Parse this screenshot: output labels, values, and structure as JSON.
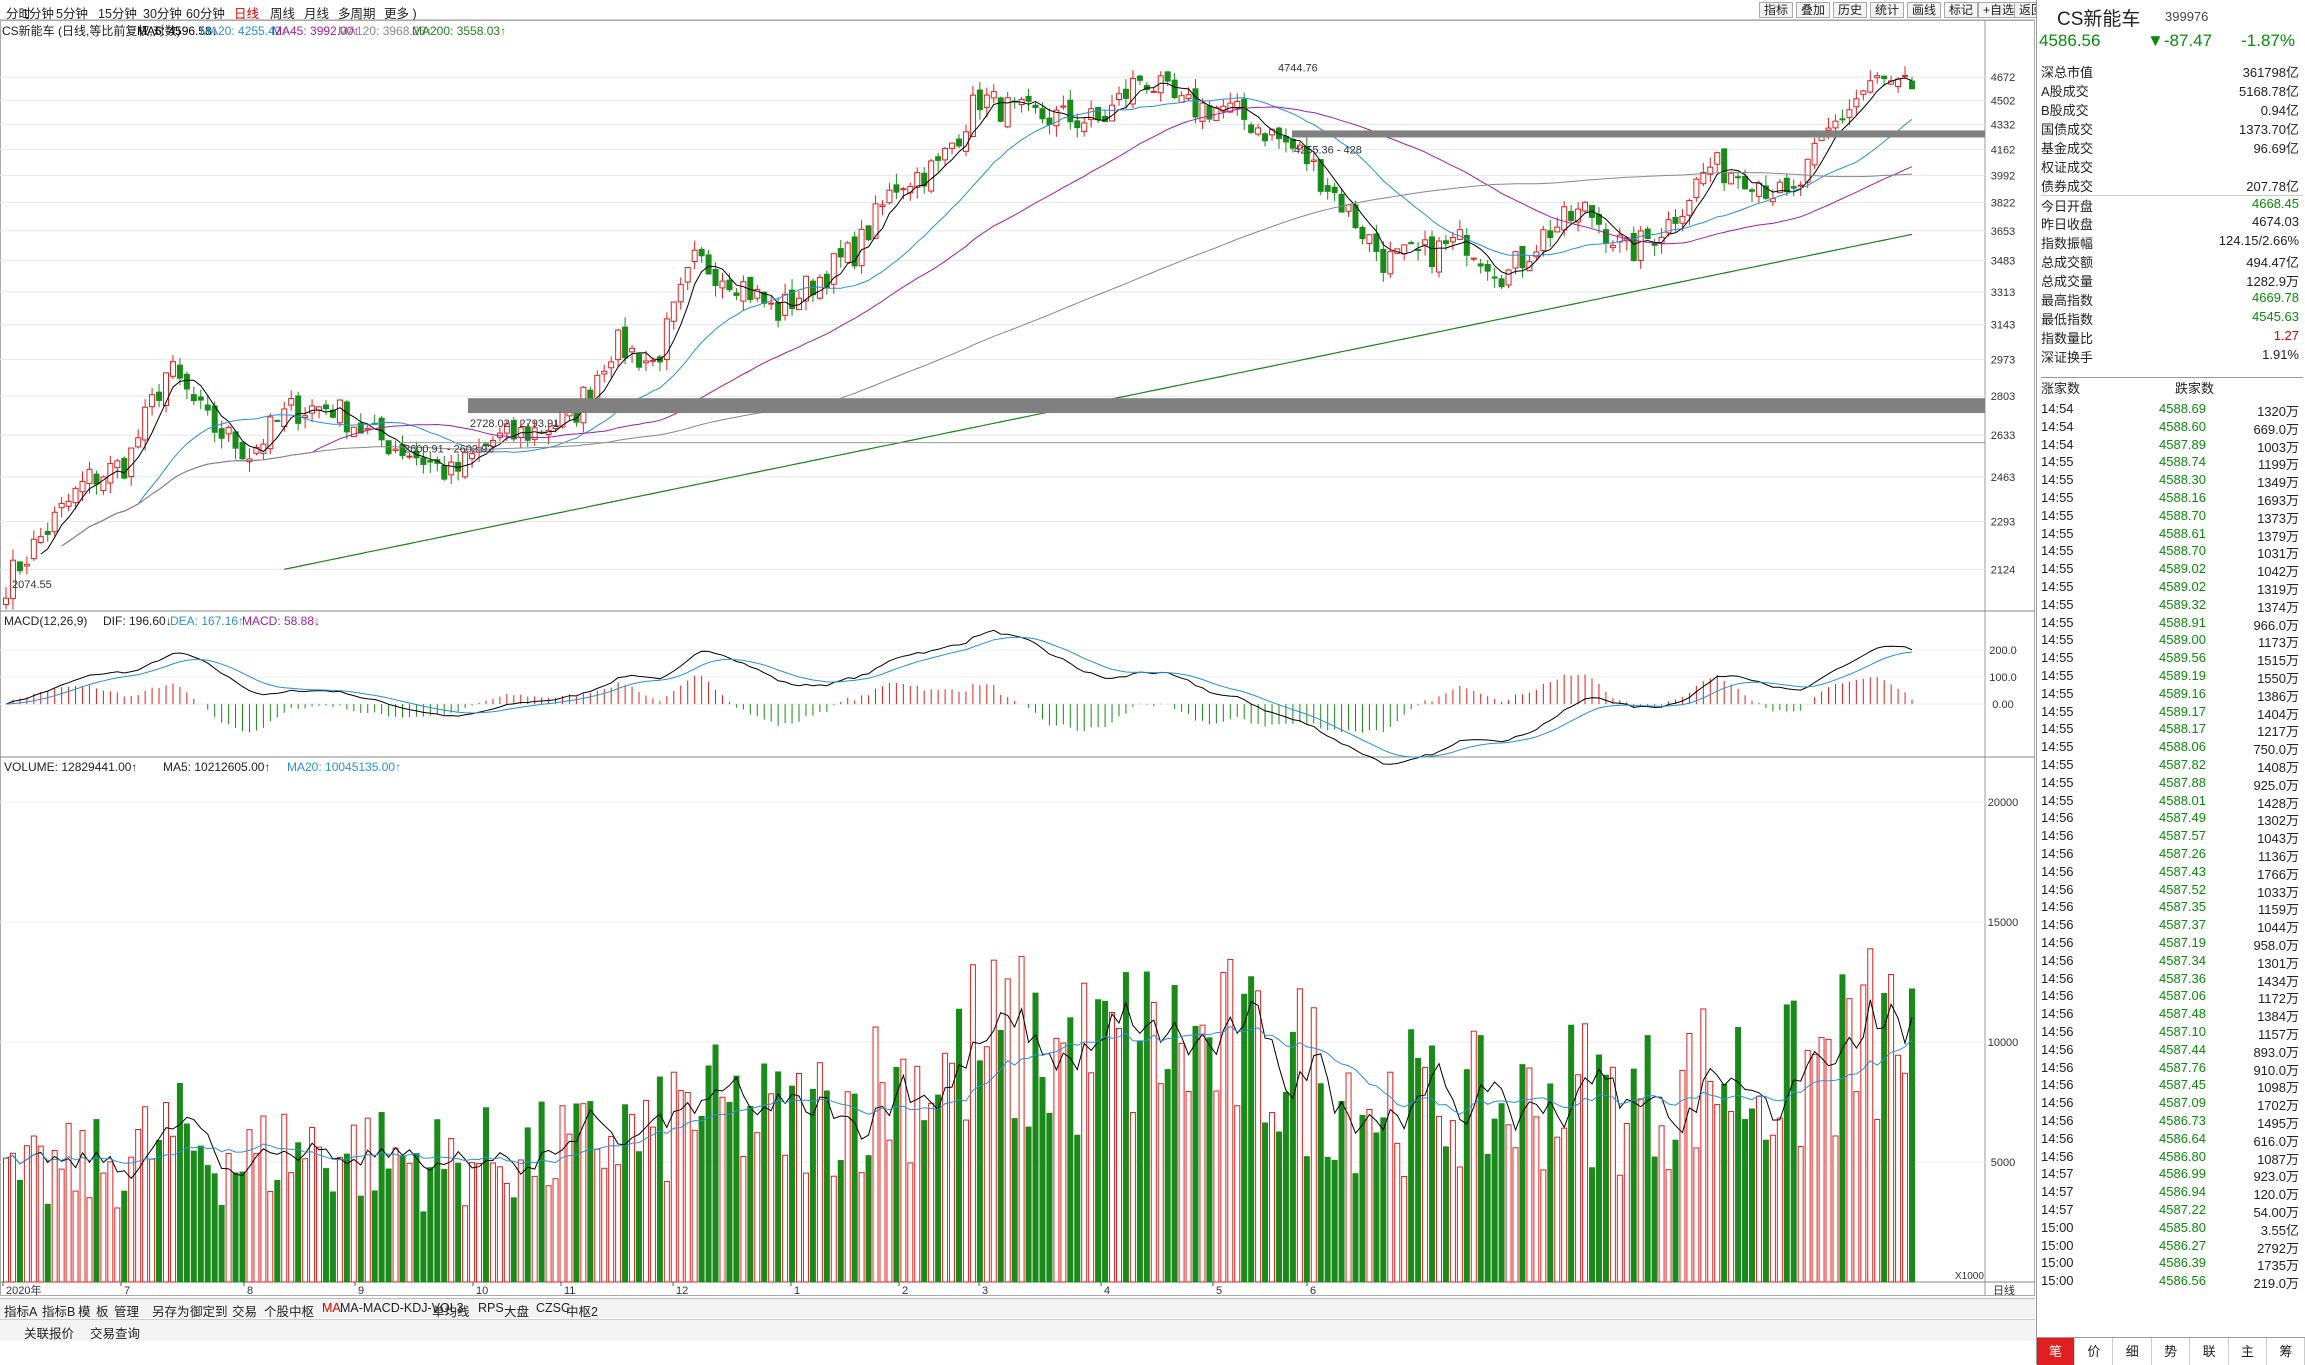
{
  "toolbar": {
    "periods": [
      "分时",
      "1分钟",
      "5分钟",
      "15分钟",
      "30分钟",
      "60分钟",
      "日线",
      "周线",
      "月线",
      "多周期",
      "更多 )"
    ],
    "active_period": "日线",
    "right_buttons": [
      "指标",
      "叠加",
      "历史",
      "统计",
      "画线",
      "标记",
      "+自选",
      "返回"
    ]
  },
  "legend": {
    "main": {
      "name": "CS新能车 (日线,等比前复权,对数)",
      "ma5": "MA5: 4596.58↓",
      "ma20": "MA20: 4255.42↑",
      "ma45": "MA45: 3992.00↑",
      "ma120": "MA120: 3968.23↑",
      "ma200": "MA200: 3558.03↑"
    },
    "macd": {
      "name": "MACD(12,26,9)",
      "dif": "DIF: 196.60↓",
      "dea": "DEA: 167.16↑",
      "macd": "MACD: 58.88↓"
    },
    "volume": {
      "name": "VOLUME: 12829441.00↑",
      "ma5": "MA5: 10212605.00↑",
      "ma20": "MA20: 10045135.00↑"
    }
  },
  "colors": {
    "up": "#e02020",
    "down": "#1a8a1a",
    "ma5": "#000000",
    "ma20": "#2a8fd8",
    "ma45": "#a020a0",
    "ma120": "#888888",
    "ma200": "#208020"
  },
  "chart_data": [
    {
      "type": "candlestick",
      "title": "CS新能车 (日线,等比前复权,对数)",
      "ylabel": "",
      "y_ticks": [
        4672,
        4502,
        4332,
        4162,
        3992,
        3822,
        3653,
        3483,
        3313,
        3143,
        2973,
        2803,
        2633,
        2463,
        2293,
        2124
      ],
      "ylim": [
        1990,
        4880
      ],
      "x_months": [
        "2020年",
        "7",
        "8",
        "9",
        "10",
        "11",
        "12",
        "1",
        "2",
        "3",
        "4",
        "5",
        "6"
      ],
      "annotations": [
        "4744.76",
        "4255.36 - 428",
        "2728.02 - 2793.91",
        "2600.91 - 2602.92",
        "2074.55"
      ],
      "ohlc_anchor_closes": [
        2080,
        2260,
        2450,
        2520,
        2930,
        2680,
        2560,
        2740,
        2760,
        2630,
        2560,
        2470,
        2610,
        2650,
        2720,
        3050,
        2950,
        3480,
        3380,
        3200,
        3380,
        3550,
        3950,
        4050,
        4520,
        4400,
        4380,
        4350,
        4680,
        4450,
        4450,
        4300,
        4120,
        3800,
        3480,
        3520,
        3600,
        3400,
        3650,
        3780,
        3520,
        3700,
        4050,
        4000,
        3820,
        4300,
        4640,
        4586.56
      ]
    },
    {
      "type": "line",
      "title": "MACD(12,26,9)",
      "y_ticks": [
        200.0,
        100.0,
        0.0
      ],
      "ylim": [
        -180,
        310
      ]
    },
    {
      "type": "bar",
      "title": "VOLUME",
      "y_ticks": [
        20000,
        15000,
        10000,
        5000
      ],
      "unit": "X1000",
      "ylim": [
        0,
        21000
      ]
    }
  ],
  "side": {
    "name": "CS新能车",
    "code": "399976",
    "price": "4586.56",
    "change": "▼-87.47",
    "pct": "-1.87%",
    "stats": [
      {
        "l": "深总市值",
        "r": "361798亿",
        "c": ""
      },
      {
        "l": "A股成交",
        "r": "5168.78亿",
        "c": ""
      },
      {
        "l": "B股成交",
        "r": "0.94亿",
        "c": ""
      },
      {
        "l": "国债成交",
        "r": "1373.70亿",
        "c": ""
      },
      {
        "l": "基金成交",
        "r": "96.69亿",
        "c": ""
      },
      {
        "l": "权证成交",
        "r": "",
        "c": ""
      },
      {
        "l": "债券成交",
        "r": "207.78亿",
        "c": ""
      },
      {
        "l": "今日开盘",
        "r": "4668.45",
        "c": "green"
      },
      {
        "l": "昨日收盘",
        "r": "4674.03",
        "c": ""
      },
      {
        "l": "指数振幅",
        "r": "124.15/2.66%",
        "c": ""
      },
      {
        "l": "总成交额",
        "r": "494.47亿",
        "c": ""
      },
      {
        "l": "总成交量",
        "r": "1282.9万",
        "c": ""
      },
      {
        "l": "最高指数",
        "r": "4669.78",
        "c": "green"
      },
      {
        "l": "最低指数",
        "r": "4545.63",
        "c": "green"
      },
      {
        "l": "指数量比",
        "r": "1.27",
        "c": "red"
      },
      {
        "l": "深证换手",
        "r": "1.91%",
        "c": ""
      }
    ],
    "updown": {
      "up": "涨家数",
      "down": "跌家数"
    },
    "ticks": [
      [
        "14:54",
        "4588.69",
        "1320万"
      ],
      [
        "14:54",
        "4588.60",
        "669.0万"
      ],
      [
        "14:54",
        "4587.89",
        "1003万"
      ],
      [
        "14:55",
        "4588.74",
        "1199万"
      ],
      [
        "14:55",
        "4588.30",
        "1349万"
      ],
      [
        "14:55",
        "4588.16",
        "1693万"
      ],
      [
        "14:55",
        "4588.70",
        "1373万"
      ],
      [
        "14:55",
        "4588.61",
        "1379万"
      ],
      [
        "14:55",
        "4588.70",
        "1031万"
      ],
      [
        "14:55",
        "4589.02",
        "1042万"
      ],
      [
        "14:55",
        "4589.02",
        "1319万"
      ],
      [
        "14:55",
        "4589.32",
        "1374万"
      ],
      [
        "14:55",
        "4588.91",
        "966.0万"
      ],
      [
        "14:55",
        "4589.00",
        "1173万"
      ],
      [
        "14:55",
        "4589.56",
        "1515万"
      ],
      [
        "14:55",
        "4589.19",
        "1550万"
      ],
      [
        "14:55",
        "4589.16",
        "1386万"
      ],
      [
        "14:55",
        "4589.17",
        "1404万"
      ],
      [
        "14:55",
        "4588.17",
        "1217万"
      ],
      [
        "14:55",
        "4588.06",
        "750.0万"
      ],
      [
        "14:55",
        "4587.82",
        "1408万"
      ],
      [
        "14:55",
        "4587.88",
        "925.0万"
      ],
      [
        "14:55",
        "4588.01",
        "1428万"
      ],
      [
        "14:56",
        "4587.49",
        "1302万"
      ],
      [
        "14:56",
        "4587.57",
        "1043万"
      ],
      [
        "14:56",
        "4587.26",
        "1136万"
      ],
      [
        "14:56",
        "4587.43",
        "1766万"
      ],
      [
        "14:56",
        "4587.52",
        "1033万"
      ],
      [
        "14:56",
        "4587.35",
        "1159万"
      ],
      [
        "14:56",
        "4587.37",
        "1044万"
      ],
      [
        "14:56",
        "4587.19",
        "958.0万"
      ],
      [
        "14:56",
        "4587.34",
        "1301万"
      ],
      [
        "14:56",
        "4587.36",
        "1434万"
      ],
      [
        "14:56",
        "4587.06",
        "1172万"
      ],
      [
        "14:56",
        "4587.48",
        "1384万"
      ],
      [
        "14:56",
        "4587.10",
        "1157万"
      ],
      [
        "14:56",
        "4587.44",
        "893.0万"
      ],
      [
        "14:56",
        "4587.76",
        "910.0万"
      ],
      [
        "14:56",
        "4587.45",
        "1098万"
      ],
      [
        "14:56",
        "4587.09",
        "1702万"
      ],
      [
        "14:56",
        "4586.73",
        "1495万"
      ],
      [
        "14:56",
        "4586.64",
        "616.0万"
      ],
      [
        "14:56",
        "4586.80",
        "1087万"
      ],
      [
        "14:57",
        "4586.99",
        "923.0万"
      ],
      [
        "14:57",
        "4586.94",
        "120.0万"
      ],
      [
        "14:57",
        "4587.22",
        "54.00万"
      ],
      [
        "15:00",
        "4585.80",
        "3.55亿"
      ],
      [
        "15:00",
        "4586.27",
        "2792万"
      ],
      [
        "15:00",
        "4586.39",
        "1735万"
      ],
      [
        "15:00",
        "4586.56",
        "219.0万"
      ]
    ],
    "tabs": [
      "笔",
      "价",
      "细",
      "势",
      "联",
      "主",
      "筹"
    ]
  },
  "xaxis_label": "日线",
  "bottom_tabs": [
    "指标A",
    "指标B",
    "模",
    "板",
    "管理",
    "另存为",
    "御定到",
    "交易",
    "个股中枢",
    "MA",
    "MA-MACD-KDJ-VOL3",
    "单均线",
    "RPS",
    "大盘",
    "CZSC",
    "中枢2"
  ],
  "bottom_tabs2": [
    "关联报价",
    "交易查询"
  ]
}
